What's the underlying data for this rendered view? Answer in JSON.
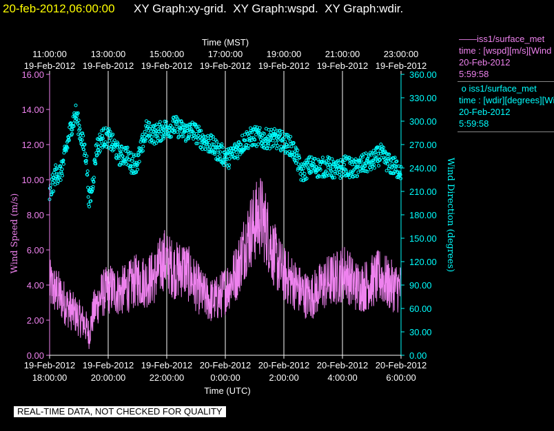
{
  "header": {
    "timestamp": "20-feb-2012,06:00:00",
    "titles": "XY Graph:xy-grid.  XY Graph:wspd.  XY Graph:wdir."
  },
  "colors": {
    "background": "#000000",
    "timestamp": "#ffff00",
    "wspd": "#ee82ee",
    "wdir": "#00ffff",
    "grid": "#ffffff"
  },
  "chart_data": {
    "type": "scatter",
    "top_axis": {
      "label": "Time (MST)",
      "times": [
        "11:00:00",
        "13:00:00",
        "15:00:00",
        "17:00:00",
        "19:00:00",
        "21:00:00",
        "23:00:00"
      ],
      "dates": [
        "19-Feb-2012",
        "19-Feb-2012",
        "19-Feb-2012",
        "19-Feb-2012",
        "19-Feb-2012",
        "19-Feb-2012",
        "19-Feb-2012"
      ]
    },
    "bottom_axis": {
      "label": "Time (UTC)",
      "dates": [
        "19-Feb-2012",
        "19-Feb-2012",
        "19-Feb-2012",
        "20-Feb-2012",
        "20-Feb-2012",
        "20-Feb-2012",
        "20-Feb-2012"
      ],
      "times": [
        "18:00:00",
        "20:00:00",
        "22:00:00",
        "0:00:00",
        "2:00:00",
        "4:00:00",
        "6:00:00"
      ]
    },
    "x_range_utc_hours": [
      18,
      30
    ],
    "left_axis": {
      "label": "Wind Speed (m/s)",
      "range": [
        0,
        16
      ],
      "ticks": [
        "0.00",
        "2.00",
        "4.00",
        "6.00",
        "8.00",
        "10.00",
        "12.00",
        "14.00",
        "16.00"
      ]
    },
    "right_axis": {
      "label": "Wind Direction (degrees)",
      "range": [
        0,
        360
      ],
      "ticks": [
        "0.00",
        "30.00",
        "60.00",
        "90.00",
        "120.00",
        "150.00",
        "180.00",
        "210.00",
        "240.00",
        "270.00",
        "300.00",
        "330.00",
        "360.00"
      ]
    },
    "series": [
      {
        "name": "iss1/surface_met",
        "style": "line",
        "axis": "left",
        "x_utc_hours": [
          18.0,
          18.3,
          18.6,
          18.9,
          19.2,
          19.35,
          19.5,
          19.8,
          20.1,
          20.4,
          20.7,
          21.0,
          21.3,
          21.6,
          21.9,
          22.0,
          22.3,
          22.6,
          22.9,
          23.2,
          23.5,
          23.8,
          24.1,
          24.4,
          24.7,
          25.0,
          25.2,
          25.4,
          25.6,
          25.8,
          26.0,
          26.3,
          26.6,
          26.9,
          27.2,
          27.5,
          27.8,
          28.1,
          28.4,
          28.7,
          29.0,
          29.3,
          29.6,
          30.0
        ],
        "values": [
          4.0,
          3.5,
          2.8,
          2.3,
          1.8,
          1.2,
          2.5,
          3.5,
          3.8,
          3.6,
          3.9,
          4.3,
          4.2,
          4.5,
          5.5,
          5.3,
          4.8,
          5.0,
          4.2,
          3.5,
          3.1,
          3.3,
          4.0,
          4.8,
          6.5,
          7.5,
          8.0,
          7.2,
          6.0,
          5.2,
          4.6,
          4.2,
          3.6,
          3.3,
          3.8,
          4.2,
          4.4,
          4.8,
          4.0,
          3.9,
          4.2,
          4.5,
          4.0,
          3.8
        ]
      },
      {
        "name": "iss1/surface_met",
        "style": "markers",
        "axis": "right",
        "x_utc_hours": [
          18.0,
          18.2,
          18.4,
          18.6,
          18.75,
          18.9,
          19.1,
          19.25,
          19.35,
          19.45,
          19.6,
          19.8,
          20.0,
          20.2,
          20.4,
          20.6,
          20.8,
          21.0,
          21.3,
          21.6,
          22.0,
          22.3,
          22.6,
          22.9,
          23.2,
          23.5,
          23.8,
          24.1,
          24.4,
          24.7,
          25.0,
          25.3,
          25.6,
          25.9,
          26.2,
          26.4,
          26.6,
          26.9,
          27.2,
          27.5,
          27.8,
          28.1,
          28.4,
          28.7,
          29.0,
          29.3,
          29.6,
          30.0
        ],
        "values": [
          205,
          232,
          235,
          270,
          295,
          310,
          276,
          255,
          195,
          215,
          265,
          279,
          279,
          268,
          255,
          258,
          246,
          247,
          288,
          283,
          291,
          294,
          286,
          288,
          277,
          270,
          260,
          252,
          264,
          276,
          281,
          277,
          278,
          275,
          269,
          258,
          233,
          243,
          240,
          242,
          236,
          243,
          238,
          245,
          248,
          258,
          245,
          237
        ]
      }
    ],
    "legend": [
      {
        "name": "iss1/surface_met",
        "detail": "time : [wspd][m/s][Wind Speed]",
        "date": "20-Feb-2012",
        "time": "5:59:58",
        "marker": "line"
      },
      {
        "name": "iss1/surface_met",
        "detail": "time : [wdir][degrees][Wind Direction]",
        "date": "20-Feb-2012",
        "time": "5:59:58",
        "marker": "circle"
      }
    ],
    "grid": true,
    "legend_position": "right"
  },
  "footer": {
    "quality_note": "REAL-TIME DATA, NOT CHECKED FOR QUALITY"
  }
}
